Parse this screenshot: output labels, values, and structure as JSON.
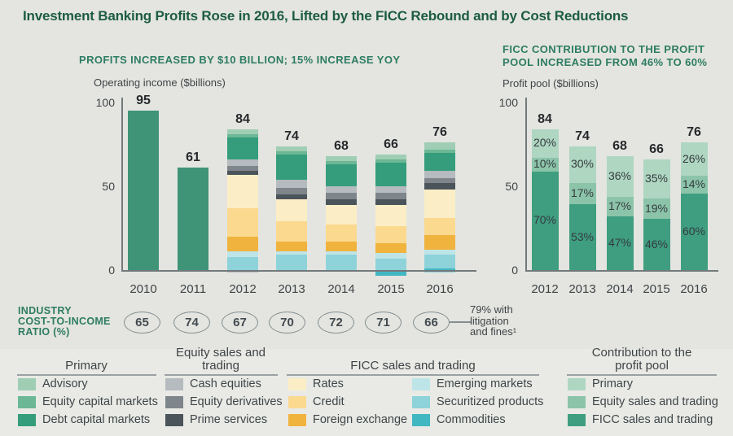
{
  "title": "Investment Banking Profits Rose in 2016, Lifted by the FICC Rebound and by Cost Reductions",
  "colors": {
    "background": "#e4e5e0",
    "title_green": "#1d5c43",
    "header_green": "#2d7c63",
    "axis_gray": "#73787b",
    "solid_green": "#3f9377",
    "advisory": "#9fceb4",
    "equity_capital_markets": "#6cb795",
    "debt_capital_markets": "#359d7c",
    "cash_equities": "#b5bbbf",
    "equity_derivatives": "#7e868b",
    "prime_services": "#4b545a",
    "rates": "#fbeec6",
    "credit": "#fbd98f",
    "foreign_exchange": "#f0b33e",
    "emerging_markets": "#bde5e8",
    "securitized_products": "#8ed2da",
    "commodities": "#41b7c2",
    "pool_primary": "#aed6c1",
    "pool_equity": "#8cc4aa",
    "pool_ficc": "#3f9e80"
  },
  "chart_data": [
    {
      "id": "operating-income-chart",
      "type": "bar",
      "stacked": true,
      "title": "PROFITS INCREASED BY $10 BILLION; 15% INCREASE YOY",
      "ylabel": "Operating income ($billions)",
      "ylim": [
        0,
        100
      ],
      "yticks": [
        100,
        50,
        0
      ],
      "grid": false,
      "categories": [
        "2010",
        "2011",
        "2012",
        "2013",
        "2014",
        "2015",
        "2016"
      ],
      "totals": [
        95,
        61,
        84,
        74,
        68,
        66,
        76
      ],
      "bars": [
        {
          "year": "2010",
          "total": 95,
          "segments": [
            {
              "k": "solid_green",
              "v": 95
            }
          ]
        },
        {
          "year": "2011",
          "total": 61,
          "segments": [
            {
              "k": "solid_green",
              "v": 61
            }
          ]
        },
        {
          "year": "2012",
          "total": 84,
          "segments": [
            {
              "k": "advisory",
              "v": 3
            },
            {
              "k": "equity_capital_markets",
              "v": 2
            },
            {
              "k": "debt_capital_markets",
              "v": 13
            },
            {
              "k": "cash_equities",
              "v": 4
            },
            {
              "k": "equity_derivatives",
              "v": 3
            },
            {
              "k": "prime_services",
              "v": 2
            },
            {
              "k": "rates",
              "v": 20
            },
            {
              "k": "credit",
              "v": 17
            },
            {
              "k": "foreign_exchange",
              "v": 9
            },
            {
              "k": "emerging_markets",
              "v": 3
            },
            {
              "k": "securitized_products",
              "v": 8
            }
          ],
          "below": [
            {
              "k": "cash_equities",
              "v": 1.5
            }
          ]
        },
        {
          "year": "2013",
          "total": 74,
          "segments": [
            {
              "k": "advisory",
              "v": 3
            },
            {
              "k": "equity_capital_markets",
              "v": 2
            },
            {
              "k": "debt_capital_markets",
              "v": 15
            },
            {
              "k": "cash_equities",
              "v": 5
            },
            {
              "k": "equity_derivatives",
              "v": 4
            },
            {
              "k": "prime_services",
              "v": 3
            },
            {
              "k": "rates",
              "v": 13
            },
            {
              "k": "credit",
              "v": 12
            },
            {
              "k": "foreign_exchange",
              "v": 6
            },
            {
              "k": "emerging_markets",
              "v": 2
            },
            {
              "k": "securitized_products",
              "v": 9
            }
          ]
        },
        {
          "year": "2014",
          "total": 68,
          "segments": [
            {
              "k": "advisory",
              "v": 3
            },
            {
              "k": "equity_capital_markets",
              "v": 2
            },
            {
              "k": "debt_capital_markets",
              "v": 13
            },
            {
              "k": "cash_equities",
              "v": 4
            },
            {
              "k": "equity_derivatives",
              "v": 4
            },
            {
              "k": "prime_services",
              "v": 3
            },
            {
              "k": "rates",
              "v": 12
            },
            {
              "k": "credit",
              "v": 10
            },
            {
              "k": "foreign_exchange",
              "v": 6
            },
            {
              "k": "emerging_markets",
              "v": 2
            },
            {
              "k": "securitized_products",
              "v": 9
            }
          ]
        },
        {
          "year": "2015",
          "total": 66,
          "segments": [
            {
              "k": "advisory",
              "v": 3
            },
            {
              "k": "equity_capital_markets",
              "v": 2
            },
            {
              "k": "debt_capital_markets",
              "v": 14
            },
            {
              "k": "cash_equities",
              "v": 4
            },
            {
              "k": "equity_derivatives",
              "v": 4
            },
            {
              "k": "prime_services",
              "v": 3
            },
            {
              "k": "rates",
              "v": 13
            },
            {
              "k": "credit",
              "v": 10
            },
            {
              "k": "foreign_exchange",
              "v": 6
            },
            {
              "k": "emerging_markets",
              "v": 3
            },
            {
              "k": "securitized_products",
              "v": 7
            }
          ],
          "below": [
            {
              "k": "commodities",
              "v": 3.5
            }
          ]
        },
        {
          "year": "2016",
          "total": 76,
          "segments": [
            {
              "k": "advisory",
              "v": 4
            },
            {
              "k": "equity_capital_markets",
              "v": 2
            },
            {
              "k": "debt_capital_markets",
              "v": 11
            },
            {
              "k": "cash_equities",
              "v": 4
            },
            {
              "k": "equity_derivatives",
              "v": 3
            },
            {
              "k": "prime_services",
              "v": 4
            },
            {
              "k": "rates",
              "v": 17
            },
            {
              "k": "credit",
              "v": 10
            },
            {
              "k": "foreign_exchange",
              "v": 9
            },
            {
              "k": "emerging_markets",
              "v": 3
            },
            {
              "k": "securitized_products",
              "v": 8
            },
            {
              "k": "commodities",
              "v": 1
            }
          ],
          "below": [
            {
              "k": "securitized_products",
              "v": 1.5
            }
          ]
        }
      ]
    },
    {
      "id": "profit-pool-chart",
      "type": "bar",
      "stacked": true,
      "title": "FICC CONTRIBUTION TO THE PROFIT\nPOOL INCREASED FROM 46% TO 60%",
      "ylabel": "Profit pool ($billions)",
      "ylim": [
        0,
        100
      ],
      "yticks": [
        100,
        50,
        0
      ],
      "grid": false,
      "categories": [
        "2012",
        "2013",
        "2014",
        "2015",
        "2016"
      ],
      "totals": [
        84,
        74,
        68,
        66,
        76
      ],
      "bars": [
        {
          "year": "2012",
          "total": 84,
          "segments": [
            {
              "k": "pool_primary",
              "pct": 20
            },
            {
              "k": "pool_equity",
              "pct": 10
            },
            {
              "k": "pool_ficc",
              "pct": 70
            }
          ]
        },
        {
          "year": "2013",
          "total": 74,
          "segments": [
            {
              "k": "pool_primary",
              "pct": 30
            },
            {
              "k": "pool_equity",
              "pct": 17
            },
            {
              "k": "pool_ficc",
              "pct": 53
            }
          ]
        },
        {
          "year": "2014",
          "total": 68,
          "segments": [
            {
              "k": "pool_primary",
              "pct": 36
            },
            {
              "k": "pool_equity",
              "pct": 17
            },
            {
              "k": "pool_ficc",
              "pct": 47
            }
          ]
        },
        {
          "year": "2015",
          "total": 66,
          "segments": [
            {
              "k": "pool_primary",
              "pct": 35
            },
            {
              "k": "pool_equity",
              "pct": 19
            },
            {
              "k": "pool_ficc",
              "pct": 46
            }
          ]
        },
        {
          "year": "2016",
          "total": 76,
          "segments": [
            {
              "k": "pool_primary",
              "pct": 26
            },
            {
              "k": "pool_equity",
              "pct": 14
            },
            {
              "k": "pool_ficc",
              "pct": 60
            }
          ]
        }
      ]
    }
  ],
  "cost_ratio": {
    "label": "INDUSTRY\nCOST-TO-INCOME\nRATIO (%)",
    "values": [
      "65",
      "74",
      "67",
      "70",
      "72",
      "71",
      "66"
    ],
    "annotation": "79% with\nlitigation\nand fines¹"
  },
  "legend": {
    "groups": [
      {
        "title": "Primary",
        "items": [
          {
            "color": "advisory",
            "label": "Advisory"
          },
          {
            "color": "equity_capital_markets",
            "label": "Equity capital markets"
          },
          {
            "color": "debt_capital_markets",
            "label": "Debt capital markets"
          }
        ]
      },
      {
        "title": "Equity sales and\ntrading",
        "items": [
          {
            "color": "cash_equities",
            "label": "Cash equities"
          },
          {
            "color": "equity_derivatives",
            "label": "Equity derivatives"
          },
          {
            "color": "prime_services",
            "label": "Prime services"
          }
        ]
      },
      {
        "title": "FICC sales and trading",
        "columns": [
          [
            {
              "color": "rates",
              "label": "Rates"
            },
            {
              "color": "credit",
              "label": "Credit"
            },
            {
              "color": "foreign_exchange",
              "label": "Foreign exchange"
            }
          ],
          [
            {
              "color": "emerging_markets",
              "label": "Emerging markets"
            },
            {
              "color": "securitized_products",
              "label": "Securitized products"
            },
            {
              "color": "commodities",
              "label": "Commodities"
            }
          ]
        ]
      },
      {
        "title": "Contribution to the\nprofit pool",
        "items": [
          {
            "color": "pool_primary",
            "label": "Primary"
          },
          {
            "color": "pool_equity",
            "label": "Equity sales and trading"
          },
          {
            "color": "pool_ficc",
            "label": "FICC sales and trading"
          }
        ]
      }
    ]
  }
}
